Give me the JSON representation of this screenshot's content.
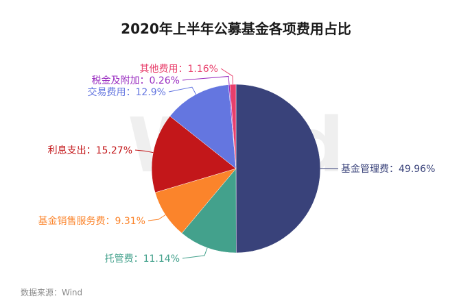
{
  "chart_data": {
    "type": "pie",
    "title": "2020年上半年公募基金各项费用占比",
    "slices": [
      {
        "name": "基金管理费",
        "value": 49.96,
        "label": "基金管理费：49.96%",
        "color": "#39427a"
      },
      {
        "name": "托管费",
        "value": 11.14,
        "label": "托管费：11.14%",
        "color": "#43a18c"
      },
      {
        "name": "基金销售服务费",
        "value": 9.31,
        "label": "基金销售服务费：9.31%",
        "color": "#fb842b"
      },
      {
        "name": "利息支出",
        "value": 15.27,
        "label": "利息支出：15.27%",
        "color": "#c3171a"
      },
      {
        "name": "交易费用",
        "value": 12.9,
        "label": "交易费用：12.9%",
        "color": "#6476e0"
      },
      {
        "name": "税金及附加",
        "value": 0.26,
        "label": "税金及附加：0.26%",
        "color": "#9a2ec0"
      },
      {
        "name": "其他费用",
        "value": 1.16,
        "label": "其他费用：1.16%",
        "color": "#e83f6b"
      }
    ]
  },
  "watermark": "Wind",
  "source": "数据来源：Wind"
}
